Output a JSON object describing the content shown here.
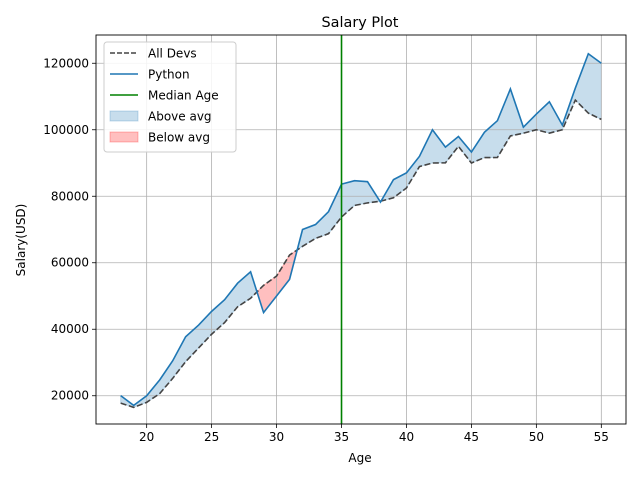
{
  "chart_data": {
    "type": "line",
    "title": "Salary Plot",
    "xlabel": "Age",
    "ylabel": "Salary(USD)",
    "xlim": [
      16.1,
      56.9
    ],
    "ylim": [
      11500,
      128500
    ],
    "xticks": [
      20,
      25,
      30,
      35,
      40,
      45,
      50,
      55
    ],
    "yticks": [
      20000,
      40000,
      60000,
      80000,
      100000,
      120000
    ],
    "grid": true,
    "legend_position": "top-left",
    "x": [
      18,
      19,
      20,
      21,
      22,
      23,
      24,
      25,
      26,
      27,
      28,
      29,
      30,
      31,
      32,
      33,
      34,
      35,
      36,
      37,
      38,
      39,
      40,
      41,
      42,
      43,
      44,
      45,
      46,
      47,
      48,
      49,
      50,
      51,
      52,
      53,
      54,
      55
    ],
    "series": [
      {
        "name": "All Devs",
        "color": "#444444",
        "style": "dashed",
        "values": [
          17784,
          16500,
          18012,
          20628,
          25206,
          30252,
          34368,
          38496,
          42000,
          46752,
          49320,
          53200,
          56000,
          62316,
          64928,
          67317,
          68748,
          73752,
          77232,
          78000,
          78508,
          79536,
          82488,
          88935,
          90000,
          90056,
          95000,
          90000,
          91633,
          91660,
          98150,
          98964,
          100000,
          98988,
          100000,
          108923,
          105000,
          103117
        ]
      },
      {
        "name": "Python",
        "color": "#1f77b4",
        "style": "solid",
        "values": [
          20046,
          17100,
          20000,
          24744,
          30500,
          37732,
          41247,
          45372,
          48876,
          53850,
          57287,
          45000,
          50000,
          55000,
          70000,
          71496,
          75370,
          83640,
          84666,
          84392,
          78254,
          85000,
          87038,
          91991,
          100000,
          94796,
          97962,
          93302,
          99240,
          102736,
          112285,
          100771,
          104708,
          108423,
          101407,
          112542,
          122870,
          120000
        ]
      }
    ],
    "vertical_line": {
      "name": "Median Age",
      "x": 35,
      "color": "#008000"
    },
    "fills": [
      {
        "name": "Above avg",
        "color": "#1f77b4",
        "opacity": 0.25
      },
      {
        "name": "Below avg",
        "color": "#ff0000",
        "opacity": 0.25
      }
    ]
  }
}
